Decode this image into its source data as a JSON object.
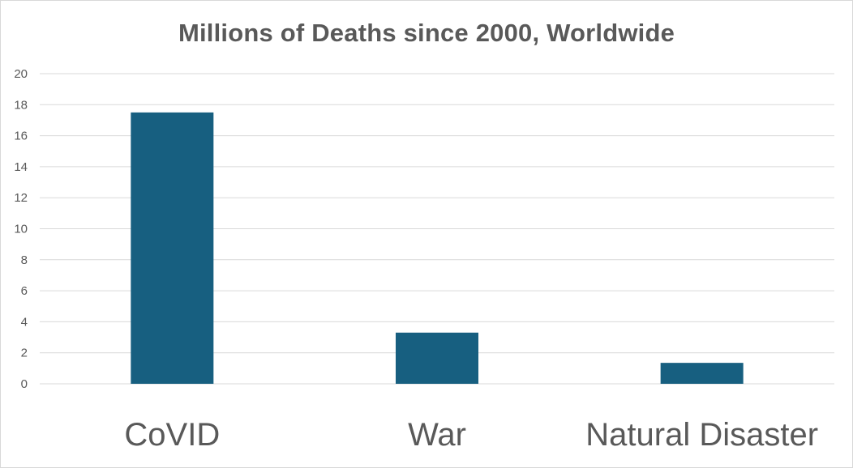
{
  "chart_data": {
    "type": "bar",
    "title": "Millions of Deaths since 2000, Worldwide",
    "xlabel": "",
    "ylabel": "",
    "categories": [
      "CoVID",
      "War",
      "Natural Disaster"
    ],
    "values": [
      17.5,
      3.3,
      1.35
    ],
    "ylim": [
      0,
      20
    ],
    "yticks": [
      "0",
      "2",
      "4",
      "6",
      "8",
      "10",
      "12",
      "14",
      "16",
      "18",
      "20"
    ],
    "grid": true,
    "legend": "none",
    "bar_color": "#175f80",
    "gridline_color": "#d9d9d9"
  }
}
